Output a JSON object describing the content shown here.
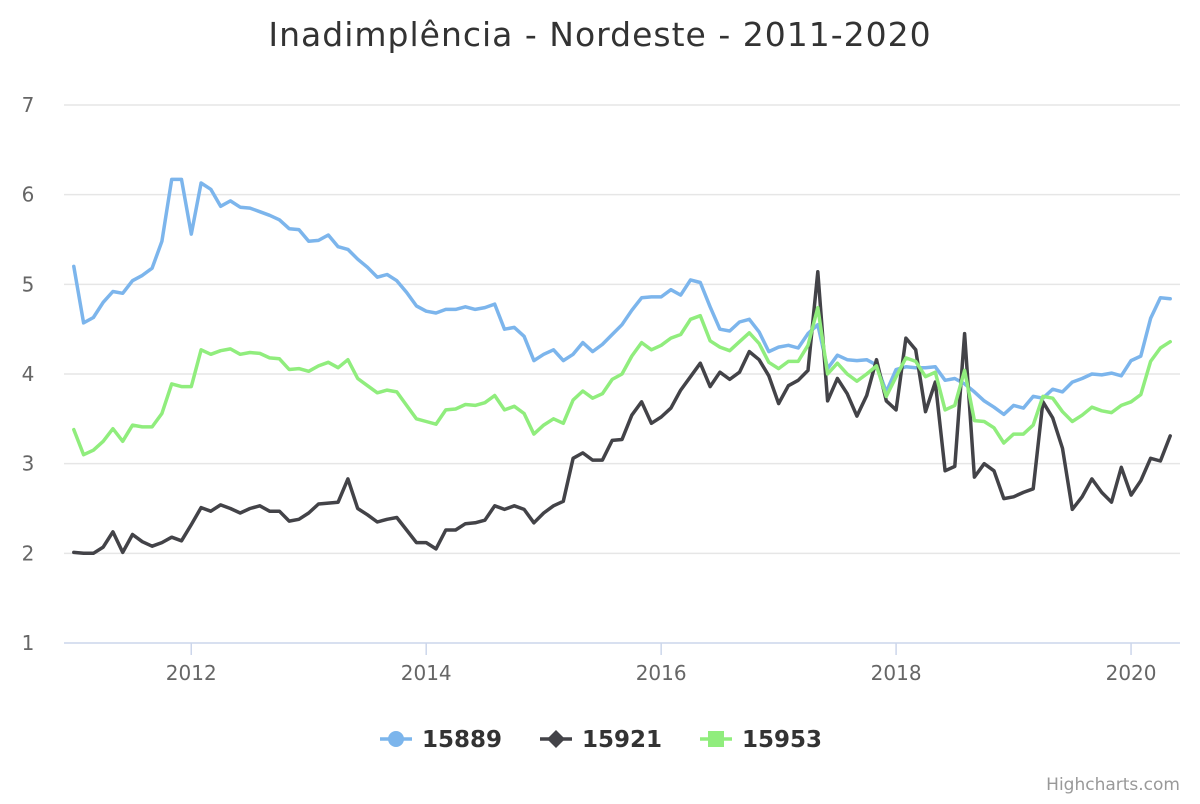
{
  "chart_data": {
    "type": "line",
    "title": "Inadimplência - Nordeste - 2011-2020",
    "xlabel": "",
    "ylabel": "",
    "x_start": "2011-01",
    "x_step": "month",
    "xlim": [
      "2010-12",
      "2020-06"
    ],
    "ylim": [
      1,
      7
    ],
    "yticks": [
      1,
      2,
      3,
      4,
      5,
      6,
      7
    ],
    "xticks": [
      "2012",
      "2014",
      "2016",
      "2018",
      "2020"
    ],
    "grid": true,
    "legend_position": "bottom-center",
    "series": [
      {
        "name": "15889",
        "color": "#7cb5ec",
        "marker": "circle",
        "values": [
          5.2,
          4.57,
          4.63,
          4.8,
          4.92,
          4.9,
          5.04,
          5.1,
          5.18,
          5.48,
          6.17,
          6.17,
          5.56,
          6.13,
          6.06,
          5.87,
          5.93,
          5.86,
          5.85,
          5.81,
          5.77,
          5.72,
          5.62,
          5.61,
          5.48,
          5.49,
          5.55,
          5.42,
          5.39,
          5.28,
          5.19,
          5.08,
          5.11,
          5.04,
          4.91,
          4.76,
          4.7,
          4.68,
          4.72,
          4.72,
          4.75,
          4.72,
          4.74,
          4.78,
          4.5,
          4.52,
          4.42,
          4.15,
          4.22,
          4.27,
          4.15,
          4.22,
          4.35,
          4.25,
          4.33,
          4.44,
          4.55,
          4.71,
          4.85,
          4.86,
          4.86,
          4.94,
          4.88,
          5.05,
          5.02,
          4.75,
          4.5,
          4.48,
          4.58,
          4.61,
          4.47,
          4.25,
          4.3,
          4.32,
          4.29,
          4.45,
          4.55,
          4.06,
          4.21,
          4.16,
          4.15,
          4.16,
          4.1,
          3.8,
          4.05,
          4.08,
          4.07,
          4.07,
          4.08,
          3.93,
          3.95,
          3.89,
          3.8,
          3.7,
          3.63,
          3.55,
          3.65,
          3.62,
          3.75,
          3.73,
          3.83,
          3.8,
          3.91,
          3.95,
          4.0,
          3.99,
          4.01,
          3.98,
          4.15,
          4.2,
          4.62,
          4.85,
          4.84
        ]
      },
      {
        "name": "15921",
        "color": "#434348",
        "marker": "diamond",
        "values": [
          2.01,
          2.0,
          2.0,
          2.07,
          2.24,
          2.01,
          2.21,
          2.13,
          2.08,
          2.12,
          2.18,
          2.14,
          2.32,
          2.51,
          2.47,
          2.54,
          2.5,
          2.45,
          2.5,
          2.53,
          2.47,
          2.47,
          2.36,
          2.38,
          2.45,
          2.55,
          2.56,
          2.57,
          2.83,
          2.5,
          2.43,
          2.35,
          2.38,
          2.4,
          2.26,
          2.12,
          2.12,
          2.05,
          2.26,
          2.26,
          2.33,
          2.34,
          2.37,
          2.53,
          2.49,
          2.53,
          2.49,
          2.34,
          2.45,
          2.53,
          2.58,
          3.06,
          3.12,
          3.04,
          3.04,
          3.26,
          3.27,
          3.54,
          3.69,
          3.45,
          3.52,
          3.62,
          3.82,
          3.97,
          4.12,
          3.86,
          4.02,
          3.94,
          4.02,
          4.25,
          4.16,
          3.98,
          3.67,
          3.87,
          3.93,
          4.04,
          5.14,
          3.7,
          3.95,
          3.78,
          3.53,
          3.76,
          4.16,
          3.7,
          3.6,
          4.4,
          4.27,
          3.58,
          3.91,
          2.92,
          2.97,
          4.45,
          2.85,
          3.0,
          2.92,
          2.61,
          2.63,
          2.68,
          2.72,
          3.69,
          3.51,
          3.17,
          2.49,
          2.63,
          2.83,
          2.68,
          2.57,
          2.96,
          2.65,
          2.81,
          3.06,
          3.03,
          3.31
        ]
      },
      {
        "name": "15953",
        "color": "#90ed7d",
        "marker": "square",
        "values": [
          3.38,
          3.1,
          3.15,
          3.25,
          3.39,
          3.25,
          3.43,
          3.41,
          3.41,
          3.56,
          3.89,
          3.86,
          3.86,
          4.27,
          4.22,
          4.26,
          4.28,
          4.22,
          4.24,
          4.23,
          4.18,
          4.17,
          4.05,
          4.06,
          4.03,
          4.09,
          4.13,
          4.07,
          4.16,
          3.95,
          3.87,
          3.79,
          3.82,
          3.8,
          3.65,
          3.5,
          3.47,
          3.44,
          3.6,
          3.61,
          3.66,
          3.65,
          3.68,
          3.76,
          3.6,
          3.64,
          3.56,
          3.33,
          3.43,
          3.5,
          3.45,
          3.71,
          3.81,
          3.73,
          3.78,
          3.94,
          4.0,
          4.2,
          4.35,
          4.27,
          4.32,
          4.4,
          4.44,
          4.61,
          4.65,
          4.37,
          4.3,
          4.26,
          4.36,
          4.46,
          4.34,
          4.13,
          4.06,
          4.14,
          4.14,
          4.32,
          4.74,
          4.0,
          4.12,
          4.0,
          3.92,
          4.0,
          4.09,
          3.75,
          3.97,
          4.18,
          4.14,
          3.97,
          4.02,
          3.6,
          3.65,
          4.04,
          3.48,
          3.47,
          3.4,
          3.23,
          3.33,
          3.33,
          3.43,
          3.75,
          3.73,
          3.58,
          3.47,
          3.54,
          3.63,
          3.59,
          3.57,
          3.65,
          3.69,
          3.77,
          4.14,
          4.29,
          4.36
        ]
      }
    ]
  },
  "credits": "Highcharts.com"
}
